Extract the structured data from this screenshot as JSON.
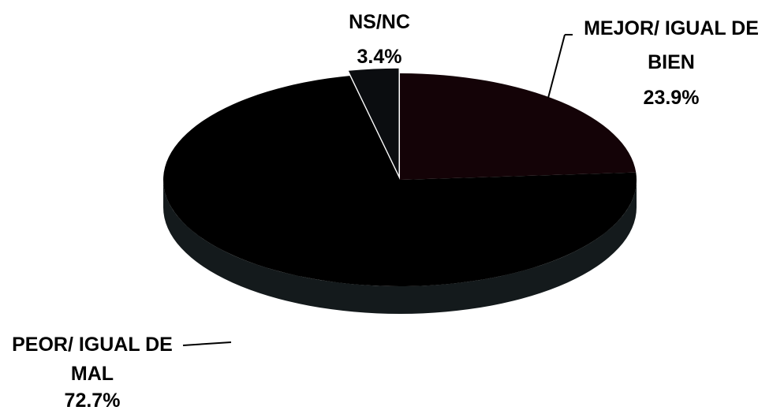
{
  "chart_data": {
    "type": "pie",
    "style": "3d",
    "slices": [
      {
        "label": "MEJOR/ IGUAL DE BIEN",
        "label_lines": [
          "MEJOR/ IGUAL DE",
          "BIEN"
        ],
        "value": 23.9,
        "value_label": "23.9%",
        "color": "#140307"
      },
      {
        "label": "PEOR/ IGUAL DE MAL",
        "label_lines": [
          "PEOR/ IGUAL DE",
          "MAL"
        ],
        "value": 72.7,
        "value_label": "72.7%",
        "color": "#000000"
      },
      {
        "label": "NS/NC",
        "label_lines": [
          "NS/NC"
        ],
        "value": 3.4,
        "value_label": "3.4%",
        "color": "#0b0d10"
      }
    ],
    "legend": "none",
    "background": "#ffffff"
  }
}
